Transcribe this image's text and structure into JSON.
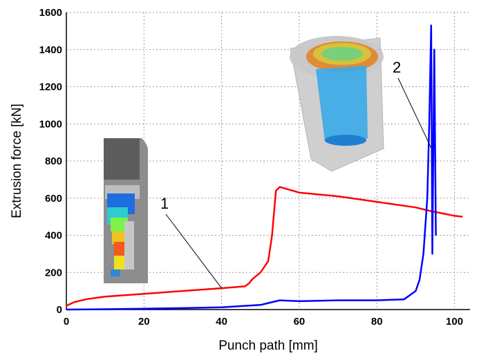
{
  "chart_data": {
    "type": "line",
    "title": "",
    "xlabel": "Punch path [mm]",
    "ylabel": "Extrusion force [kN]",
    "xlim": [
      0,
      104
    ],
    "ylim": [
      0,
      1600
    ],
    "x_ticks": [
      "0",
      "20",
      "40",
      "60",
      "80",
      "100"
    ],
    "y_ticks": [
      "0",
      "200",
      "400",
      "600",
      "800",
      "1000",
      "1200",
      "1400",
      "1600"
    ],
    "grid": true,
    "series": [
      {
        "name": "1",
        "color": "#ff0000",
        "x": [
          0,
          2,
          5,
          10,
          20,
          30,
          40,
          46,
          47,
          48,
          50,
          52,
          53,
          54,
          55,
          60,
          70,
          80,
          90,
          94,
          100,
          102
        ],
        "y": [
          20,
          40,
          55,
          70,
          85,
          100,
          115,
          125,
          140,
          165,
          200,
          260,
          400,
          640,
          660,
          630,
          610,
          580,
          550,
          530,
          505,
          500
        ]
      },
      {
        "name": "2",
        "color": "#0000ff",
        "x": [
          0,
          10,
          20,
          30,
          40,
          50,
          55,
          60,
          70,
          80,
          87,
          88,
          90,
          91,
          92,
          93,
          93.5,
          94,
          94.3,
          94.8,
          95.2
        ],
        "y": [
          0,
          2,
          5,
          8,
          12,
          25,
          50,
          45,
          50,
          50,
          55,
          70,
          100,
          160,
          300,
          600,
          1000,
          1530,
          300,
          1400,
          400
        ]
      }
    ],
    "annotations": [
      {
        "text": "1",
        "at_x": 40,
        "at_y": 115
      },
      {
        "text": "2",
        "at_x": 94,
        "at_y": 870
      }
    ]
  }
}
